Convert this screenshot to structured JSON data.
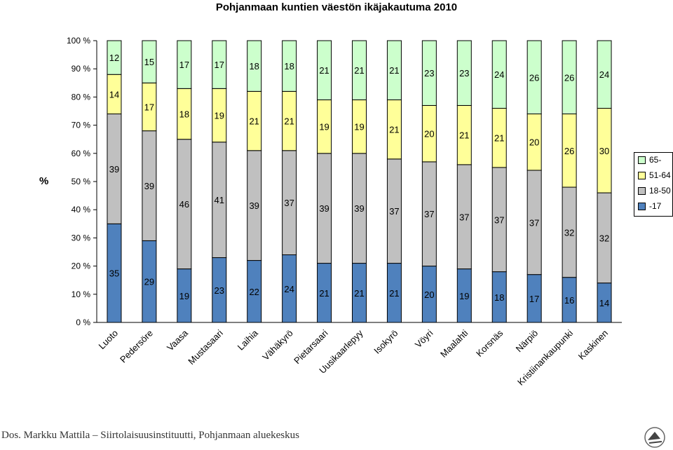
{
  "title": "Pohjanmaan kuntien väestön ikäjakautuma 2010",
  "source": "Dos. Markku Mattila – Siirtolaisuusinstituutti, Pohjanmaan aluekeskus",
  "colors": {
    "s1": "#4F81BD",
    "s2": "#C0C0C0",
    "s3": "#FFFF99",
    "s4": "#CCFFCC",
    "border": "#000000"
  },
  "chart_data": {
    "type": "bar",
    "stacked": true,
    "ylabel": "%",
    "ylim": [
      0,
      100
    ],
    "yticks": [
      "0 %",
      "10 %",
      "20 %",
      "30 %",
      "40 %",
      "50 %",
      "60 %",
      "70 %",
      "80 %",
      "90 %",
      "100 %"
    ],
    "categories": [
      "Luoto",
      "Pedersöre",
      "Vaasa",
      "Mustasaari",
      "Laihia",
      "Vähäkyrö",
      "Pietarsaari",
      "Uusikaarlepyy",
      "Isokyrö",
      "Vöyri",
      "Maalahti",
      "Korsnäs",
      "Närpiö",
      "Kristiinankaupunki",
      "Kaskinen"
    ],
    "series": [
      {
        "name": "-17",
        "color": "#4F81BD",
        "values": [
          35,
          29,
          19,
          23,
          22,
          24,
          21,
          21,
          21,
          20,
          19,
          18,
          17,
          16,
          14
        ]
      },
      {
        "name": "18-50",
        "color": "#C0C0C0",
        "values": [
          39,
          39,
          46,
          41,
          39,
          37,
          39,
          39,
          37,
          37,
          37,
          37,
          37,
          32,
          32
        ]
      },
      {
        "name": "51-64",
        "color": "#FFFF99",
        "values": [
          14,
          17,
          18,
          19,
          21,
          21,
          19,
          19,
          21,
          20,
          21,
          21,
          20,
          26,
          30
        ]
      },
      {
        "name": "65-",
        "color": "#CCFFCC",
        "values": [
          12,
          15,
          17,
          17,
          18,
          18,
          21,
          21,
          21,
          23,
          23,
          24,
          26,
          26,
          24
        ]
      }
    ],
    "legend_position": "right",
    "legend_order": [
      "65-",
      "51-64",
      "18-50",
      "-17"
    ],
    "grid": false
  }
}
